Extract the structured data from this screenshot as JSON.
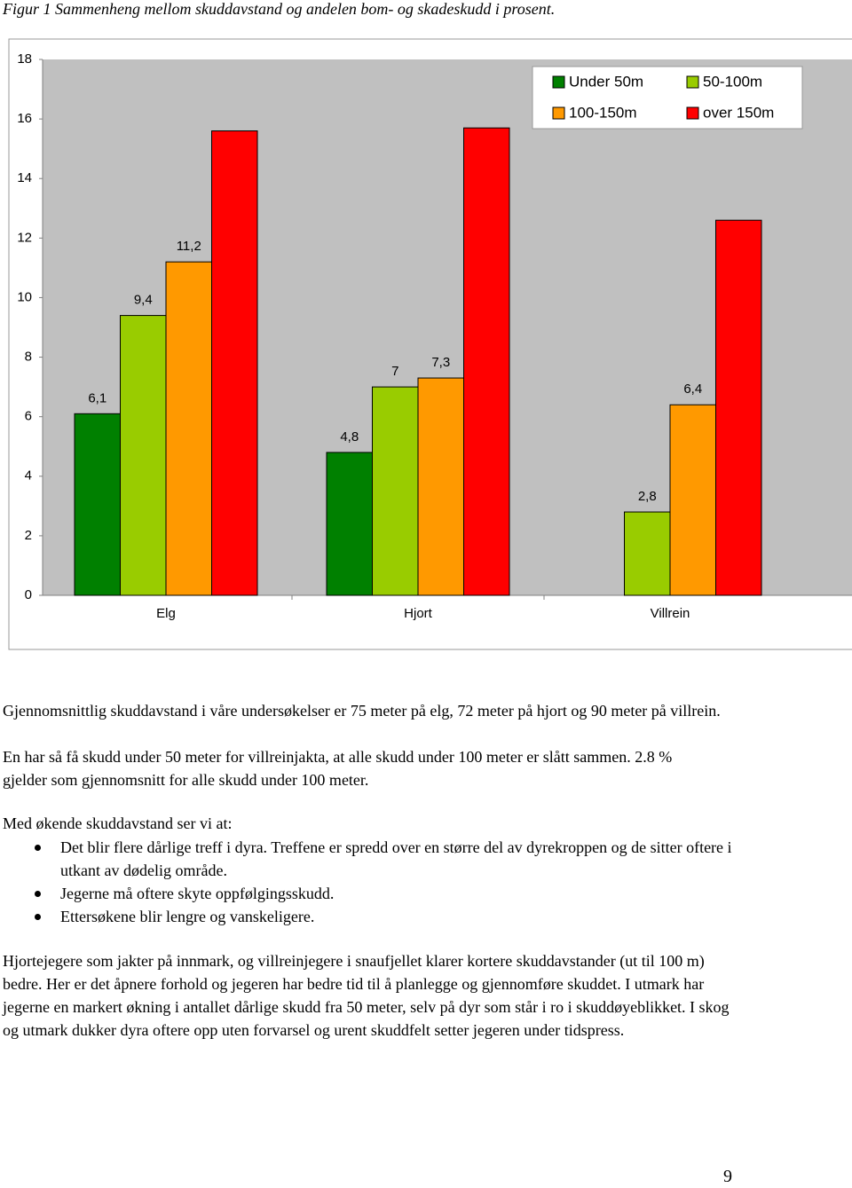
{
  "caption": "Figur 1 Sammenheng mellom skuddavstand og andelen bom- og skadeskudd i prosent.",
  "chart_data": {
    "type": "bar",
    "categories": [
      "Elg",
      "Hjort",
      "Villrein"
    ],
    "series": [
      {
        "name": "Under 50m",
        "color": "#008000",
        "values": [
          6.1,
          4.8,
          null
        ],
        "value_labels": [
          "6,1",
          "4,8",
          null
        ]
      },
      {
        "name": "50-100m",
        "color": "#99cc00",
        "values": [
          9.4,
          7,
          2.8
        ],
        "value_labels": [
          "9,4",
          "7",
          "2,8"
        ]
      },
      {
        "name": "100-150m",
        "color": "#ff9900",
        "values": [
          11.2,
          7.3,
          6.4
        ],
        "value_labels": [
          "11,2",
          "7,3",
          "6,4"
        ]
      },
      {
        "name": "over 150m",
        "color": "#ff0000",
        "values": [
          15.6,
          15.7,
          12.6
        ]
      }
    ],
    "ylim": [
      0,
      18
    ],
    "yticks": [
      0,
      2,
      4,
      6,
      8,
      10,
      12,
      14,
      16,
      18
    ],
    "grid": false,
    "legend": "top-right"
  },
  "paragraphs": [
    "Gjennomsnittlig skuddavstand i våre undersøkelser er 75 meter på elg, 72 meter på hjort og 90 meter på villrein.",
    "En har så få skudd under 50 meter for villreinjakta, at alle skudd under 100 meter er slått sammen. 2.8 % gjelder som gjennomsnitt for alle skudd under 100 meter."
  ],
  "list_intro": "Med økende skuddavstand ser vi at:",
  "bullets": [
    "Det blir flere dårlige treff i dyra. Treffene er spredd over en større del av dyrekroppen og de sitter oftere i utkant av dødelig område.",
    "Jegerne må oftere skyte oppfølgingsskudd.",
    "Ettersøkene blir lengre og vanskeligere."
  ],
  "closing": "Hjortejegere som jakter på innmark, og villreinjegere i snaufjellet klarer kortere skuddavstander (ut til 100 m) bedre. Her er det åpnere forhold og jegeren har bedre tid til å planlegge og gjennomføre skuddet. I utmark har jegerne en markert økning i antallet dårlige skudd fra 50 meter, selv på dyr som står i ro i skudd­øyeblikket. I skog og utmark dukker dyra oftere opp uten forvarsel og urent skuddfelt setter jegeren under tidspress.",
  "page_number": "9"
}
